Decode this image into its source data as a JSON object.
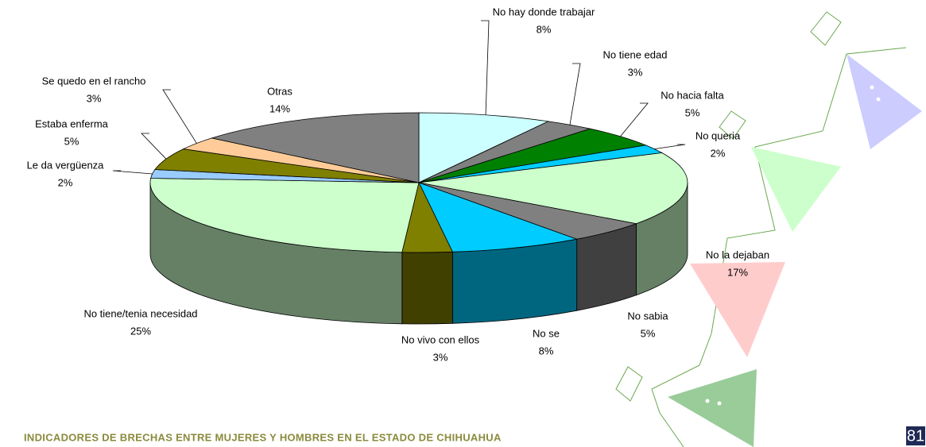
{
  "chart_data": {
    "type": "pie3d",
    "categories": [
      "No hay donde trabajar",
      "No tiene edad",
      "No hacia falta",
      "No queria",
      "No la dejaban",
      "No sabia",
      "No se",
      "No vivo con ellos",
      "No tiene/tenia necesidad",
      "Le da vergüenza",
      "Estaba enferma",
      "Se quedo en el rancho",
      "Otras"
    ],
    "values": [
      8,
      3,
      5,
      2,
      17,
      5,
      8,
      3,
      25,
      2,
      5,
      3,
      14
    ],
    "value_labels": [
      "8%",
      "3%",
      "5%",
      "2%",
      "17%",
      "5%",
      "8%",
      "3%",
      "25%",
      "2%",
      "5%",
      "3%",
      "14%"
    ],
    "colors": [
      "#ccffff",
      "#808080",
      "#008000",
      "#00ccff",
      "#ccffcc",
      "#808080",
      "#00ccff",
      "#808000",
      "#ccffcc",
      "#99ccff",
      "#808000",
      "#ffcc99",
      "#808080"
    ]
  },
  "footer": {
    "text": "INDICADORES DE BRECHAS ENTRE MUJERES Y HOMBRES EN EL ESTADO DE CHIHUAHUA",
    "page": "81"
  }
}
